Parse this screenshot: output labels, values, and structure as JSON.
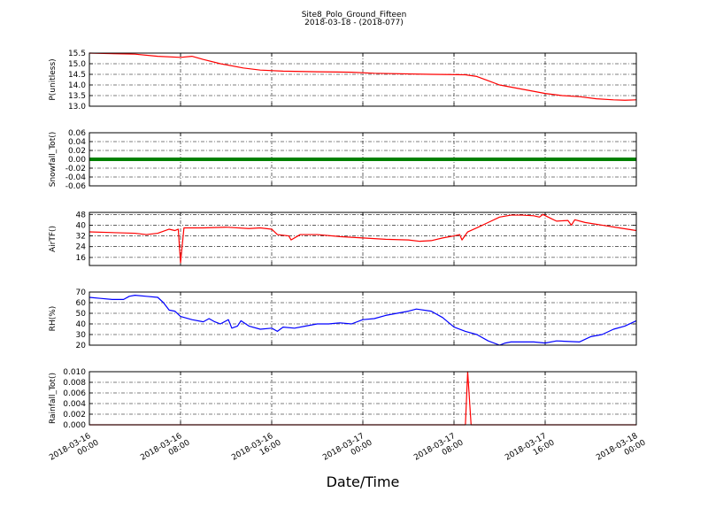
{
  "figure": {
    "title": "Site8_Polo_Ground_Fifteen",
    "subtitle": "2018-03-18 - (2018-077)",
    "xlabel": "Date/Time",
    "xlim": [
      "2018-03-16 00:00",
      "2018-03-18 00:00"
    ],
    "xticks": [
      "2018-03-16 00:00",
      "2018-03-16 08:00",
      "2018-03-16 16:00",
      "2018-03-17 00:00",
      "2018-03-17 08:00",
      "2018-03-17 16:00",
      "2018-03-18 00:00"
    ]
  },
  "chart_data": [
    {
      "type": "line",
      "ylabel": "P(unitless)",
      "ylim": [
        13,
        15.5
      ],
      "grid": true,
      "yticks": [
        {
          "value": 13,
          "label": "13.0"
        },
        13.5,
        {
          "value": 14,
          "label": "14.0"
        },
        14.5,
        {
          "value": 15,
          "label": "15.0"
        },
        15.5
      ],
      "x": [
        "2018-03-16 00:00",
        "2018-03-16 04:00",
        "2018-03-16 06:00",
        "2018-03-16 08:00",
        "2018-03-16 09:00",
        "2018-03-16 10:00",
        "2018-03-16 11:30",
        "2018-03-16 13:30",
        "2018-03-16 15:00",
        "2018-03-16 17:00",
        "2018-03-16 20:00",
        "2018-03-16 23:00",
        "2018-03-17 01:00",
        "2018-03-17 06:00",
        "2018-03-17 09:00",
        "2018-03-17 10:00",
        "2018-03-17 11:00",
        "2018-03-17 12:00",
        "2018-03-17 13:30",
        "2018-03-17 14:30",
        "2018-03-17 16:00",
        "2018-03-17 17:30",
        "2018-03-17 19:00",
        "2018-03-17 20:30",
        "2018-03-17 22:00",
        "2018-03-17 23:00",
        "2018-03-18 00:00"
      ],
      "series": [
        {
          "color": "#ff0000",
          "values": [
            15.5,
            15.45,
            15.35,
            15.3,
            15.35,
            15.2,
            15.0,
            14.8,
            14.7,
            14.65,
            14.62,
            14.6,
            14.55,
            14.5,
            14.48,
            14.4,
            14.2,
            14.0,
            13.85,
            13.75,
            13.6,
            13.5,
            13.45,
            13.35,
            13.3,
            13.28,
            13.3
          ]
        }
      ]
    },
    {
      "type": "line",
      "ylabel": "Snowfall_Tot()",
      "ylim": [
        -0.06,
        0.06
      ],
      "grid": true,
      "yticks": [
        -0.06,
        -0.04,
        -0.02,
        {
          "value": 0,
          "label": "0.00"
        },
        0.02,
        0.04,
        0.06
      ],
      "x": [
        "2018-03-16 00:00",
        "2018-03-16 04:00",
        "2018-03-16 08:00",
        "2018-03-16 12:00",
        "2018-03-16 16:00",
        "2018-03-16 20:00",
        "2018-03-17 00:00",
        "2018-03-17 04:00",
        "2018-03-17 08:00",
        "2018-03-17 12:00",
        "2018-03-17 16:00",
        "2018-03-17 20:00",
        "2018-03-18 00:00"
      ],
      "series": [
        {
          "color": "#008000",
          "values": [
            0,
            0,
            0,
            0,
            0,
            0,
            0,
            0,
            0,
            0,
            0,
            0,
            0
          ]
        }
      ]
    },
    {
      "type": "line",
      "ylabel": "AirTF()",
      "ylim": [
        10,
        49.5
      ],
      "grid": true,
      "yticks": [
        16,
        24,
        32,
        40,
        48
      ],
      "x": [
        "2018-03-16 00:00",
        "2018-03-16 04:00",
        "2018-03-16 05:00",
        "2018-03-16 06:00",
        "2018-03-16 07:00",
        "2018-03-16 07:30",
        "2018-03-16 07:48",
        "2018-03-16 08:00",
        "2018-03-16 08:18",
        "2018-03-16 10:00",
        "2018-03-16 12:00",
        "2018-03-16 14:00",
        "2018-03-16 15:00",
        "2018-03-16 16:00",
        "2018-03-16 16:30",
        "2018-03-16 17:30",
        "2018-03-16 17:42",
        "2018-03-16 18:30",
        "2018-03-16 20:00",
        "2018-03-16 22:00",
        "2018-03-17 00:00",
        "2018-03-17 02:00",
        "2018-03-17 04:00",
        "2018-03-17 05:00",
        "2018-03-17 06:00",
        "2018-03-17 07:00",
        "2018-03-17 08:00",
        "2018-03-17 08:30",
        "2018-03-17 08:42",
        "2018-03-17 09:12",
        "2018-03-17 10:00",
        "2018-03-17 11:00",
        "2018-03-17 12:00",
        "2018-03-17 13:00",
        "2018-03-17 14:00",
        "2018-03-17 15:00",
        "2018-03-17 15:30",
        "2018-03-17 15:48",
        "2018-03-17 16:30",
        "2018-03-17 17:00",
        "2018-03-17 18:00",
        "2018-03-17 18:18",
        "2018-03-17 18:36",
        "2018-03-17 19:30",
        "2018-03-17 21:00",
        "2018-03-17 22:30",
        "2018-03-18 00:00"
      ],
      "series": [
        {
          "color": "#ff0000",
          "values": [
            35,
            34,
            33,
            34,
            37,
            36,
            37,
            12,
            38,
            38,
            38.5,
            37.5,
            38,
            37,
            33,
            32,
            29,
            33,
            33,
            31.5,
            30.5,
            29.5,
            29,
            28,
            28.5,
            30.5,
            32,
            33,
            29,
            35,
            38,
            42,
            46,
            47.5,
            47.5,
            47,
            46,
            48,
            45,
            43,
            43.5,
            40,
            44,
            42,
            40,
            38,
            36
          ]
        }
      ]
    },
    {
      "type": "line",
      "ylabel": "RH(%)",
      "ylim": [
        20,
        70
      ],
      "grid": true,
      "yticks": [
        20,
        30,
        40,
        50,
        60,
        70
      ],
      "x": [
        "2018-03-16 00:00",
        "2018-03-16 01:00",
        "2018-03-16 02:00",
        "2018-03-16 03:00",
        "2018-03-16 03:30",
        "2018-03-16 04:00",
        "2018-03-16 05:00",
        "2018-03-16 06:00",
        "2018-03-16 06:30",
        "2018-03-16 07:00",
        "2018-03-16 07:30",
        "2018-03-16 08:00",
        "2018-03-16 09:00",
        "2018-03-16 10:00",
        "2018-03-16 10:30",
        "2018-03-16 11:00",
        "2018-03-16 11:30",
        "2018-03-16 12:12",
        "2018-03-16 12:30",
        "2018-03-16 13:00",
        "2018-03-16 13:18",
        "2018-03-16 14:00",
        "2018-03-16 15:00",
        "2018-03-16 16:00",
        "2018-03-16 16:30",
        "2018-03-16 17:00",
        "2018-03-16 18:00",
        "2018-03-16 19:00",
        "2018-03-16 20:00",
        "2018-03-16 21:00",
        "2018-03-16 22:00",
        "2018-03-16 23:00",
        "2018-03-17 00:00",
        "2018-03-17 01:00",
        "2018-03-17 02:00",
        "2018-03-17 03:00",
        "2018-03-17 04:00",
        "2018-03-17 04:42",
        "2018-03-17 06:00",
        "2018-03-17 07:00",
        "2018-03-17 08:00",
        "2018-03-17 09:00",
        "2018-03-17 10:00",
        "2018-03-17 11:00",
        "2018-03-17 12:00",
        "2018-03-17 12:30",
        "2018-03-17 13:00",
        "2018-03-17 15:00",
        "2018-03-17 16:00",
        "2018-03-17 17:00",
        "2018-03-17 19:00",
        "2018-03-17 20:00",
        "2018-03-17 21:00",
        "2018-03-17 22:00",
        "2018-03-17 23:00",
        "2018-03-18 00:00"
      ],
      "series": [
        {
          "color": "#0000ff",
          "values": [
            65,
            64,
            63,
            63,
            66,
            67,
            66,
            65,
            60,
            53,
            52,
            47,
            44,
            42,
            45,
            42,
            40,
            44,
            36,
            38,
            43,
            38,
            35,
            36,
            33,
            37,
            36,
            38,
            40,
            40,
            41,
            40,
            44,
            45,
            48,
            50,
            52,
            54,
            52,
            46,
            37,
            33,
            30,
            24,
            20,
            22,
            23,
            23,
            22,
            24,
            23,
            28,
            30,
            35,
            38,
            43
          ]
        }
      ]
    },
    {
      "type": "line",
      "ylabel": "Rainfall_Tot()",
      "ylim": [
        0,
        0.01
      ],
      "grid": true,
      "yticks": [
        {
          "value": 0,
          "label": "0.000"
        },
        0.002,
        0.004,
        0.006,
        0.008,
        {
          "value": 0.01,
          "label": "0.010"
        }
      ],
      "x": [
        "2018-03-16 00:00",
        "2018-03-17 09:00",
        "2018-03-17 09:12",
        "2018-03-17 09:30",
        "2018-03-18 00:00"
      ],
      "series": [
        {
          "color": "#ff0000",
          "values": [
            0,
            0,
            0.01,
            0,
            0
          ]
        }
      ]
    }
  ]
}
